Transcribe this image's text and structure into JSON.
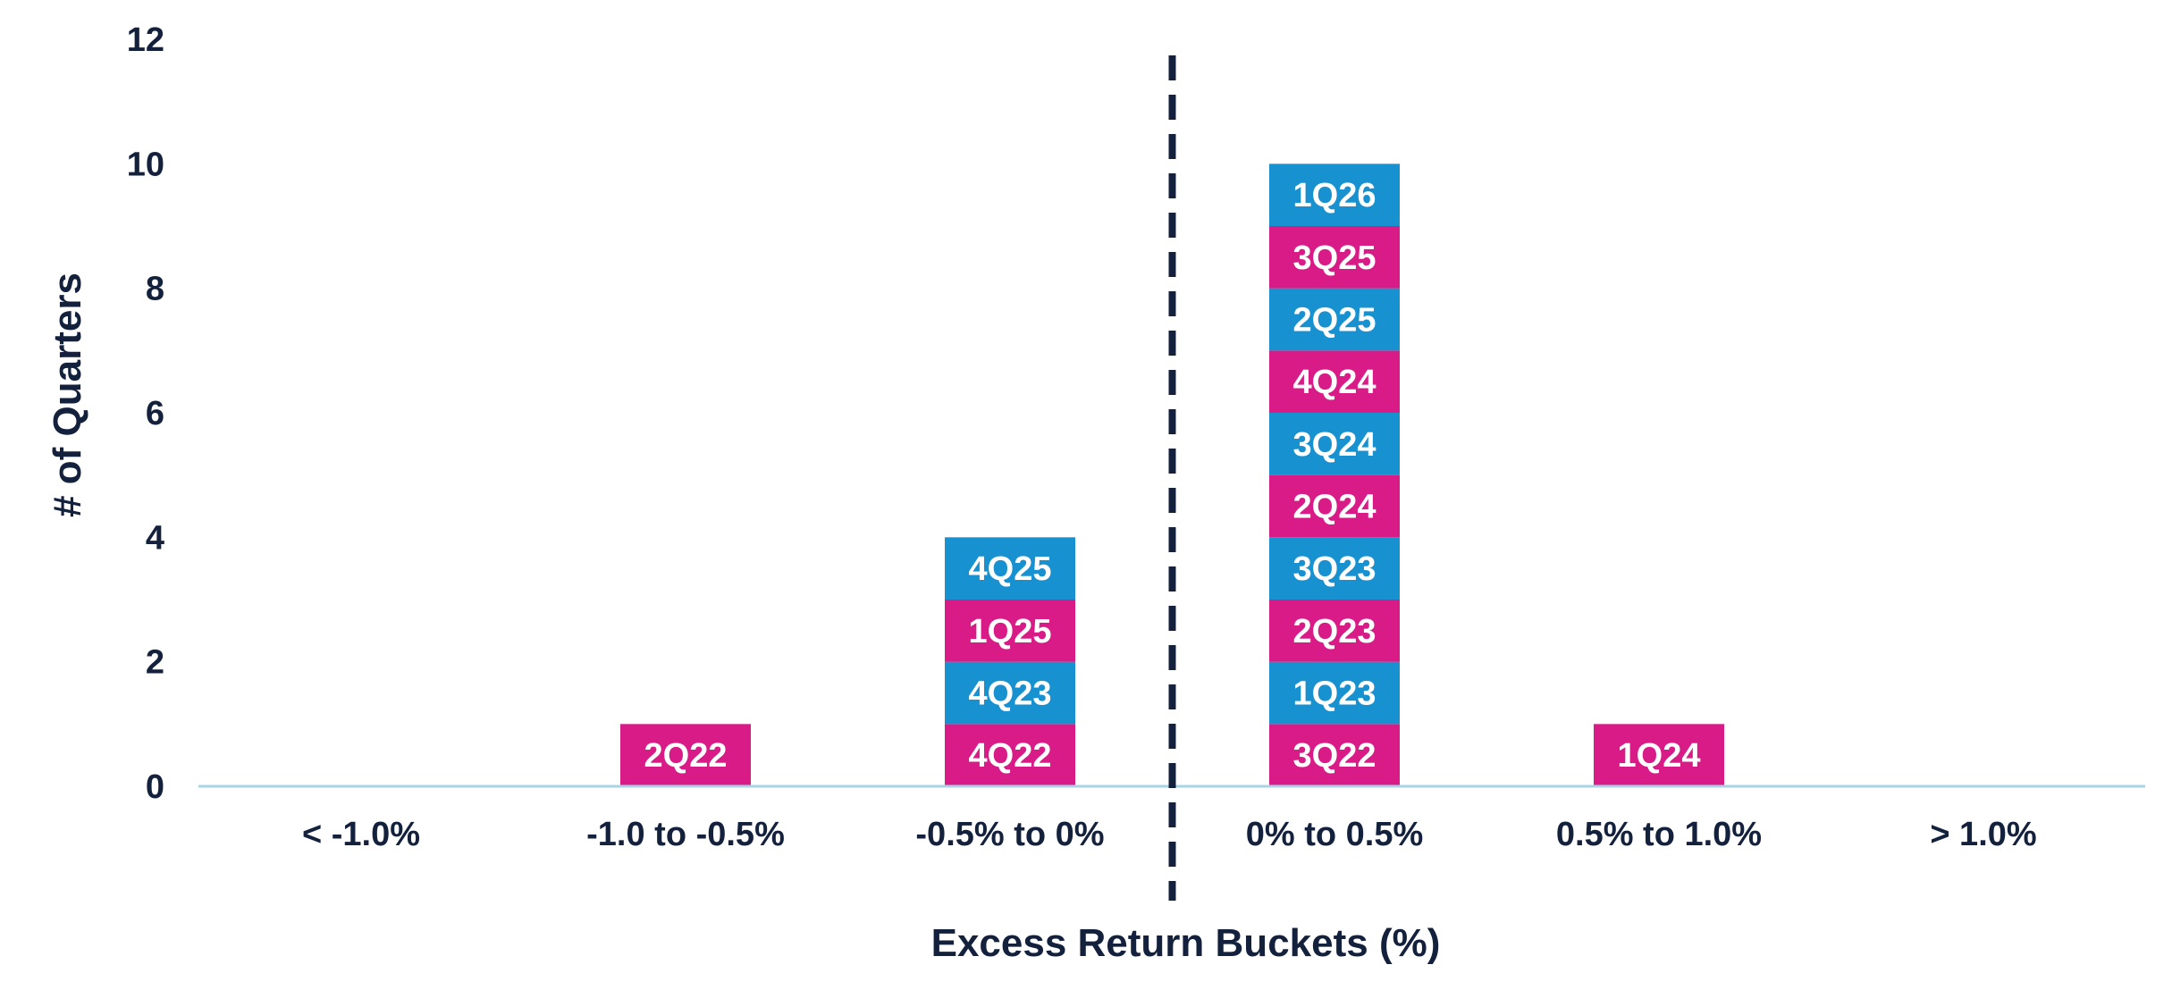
{
  "colors": {
    "magenta": "#d81b87",
    "blue": "#1891d1",
    "text": "#14213d",
    "axis_line": "#a8d4e6",
    "divider": "#14213d"
  },
  "chart_data": {
    "type": "bar",
    "stacked": true,
    "title": "",
    "xlabel": "Excess Return Buckets (%)",
    "ylabel": "# of Quarters",
    "ylim": [
      0,
      12
    ],
    "yticks": [
      0,
      2,
      4,
      6,
      8,
      10,
      12
    ],
    "grid": false,
    "legend": "none",
    "divider": "dashed vertical line between -0.5% to 0% and 0% to 0.5%",
    "categories": [
      "< -1.0%",
      "-1.0 to -0.5%",
      "-0.5% to 0%",
      "0% to 0.5%",
      "0.5% to 1.0%",
      "> 1.0%"
    ],
    "values": [
      0,
      1,
      4,
      10,
      1,
      0
    ],
    "stacks": [
      [],
      [
        {
          "label": "2Q22",
          "color": "magenta"
        }
      ],
      [
        {
          "label": "4Q22",
          "color": "magenta"
        },
        {
          "label": "4Q23",
          "color": "blue"
        },
        {
          "label": "1Q25",
          "color": "magenta"
        },
        {
          "label": "4Q25",
          "color": "blue"
        }
      ],
      [
        {
          "label": "3Q22",
          "color": "magenta"
        },
        {
          "label": "1Q23",
          "color": "blue"
        },
        {
          "label": "2Q23",
          "color": "magenta"
        },
        {
          "label": "3Q23",
          "color": "blue"
        },
        {
          "label": "2Q24",
          "color": "magenta"
        },
        {
          "label": "3Q24",
          "color": "blue"
        },
        {
          "label": "4Q24",
          "color": "magenta"
        },
        {
          "label": "2Q25",
          "color": "blue"
        },
        {
          "label": "3Q25",
          "color": "magenta"
        },
        {
          "label": "1Q26",
          "color": "blue"
        }
      ],
      [
        {
          "label": "1Q24",
          "color": "magenta"
        }
      ],
      []
    ]
  }
}
